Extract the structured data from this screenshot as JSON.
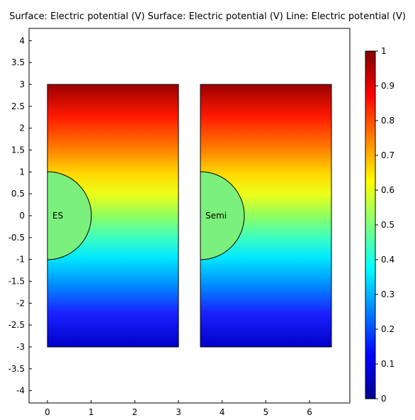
{
  "title": "Surface: Electric potential (V)  Surface: Electric potential (V)  Line: Electric potential (V)",
  "plot": {
    "x_ticks": [
      "0",
      "1",
      "2",
      "3",
      "4",
      "5",
      "6"
    ],
    "y_ticks": [
      "4",
      "3.5",
      "3",
      "2.5",
      "2",
      "1.5",
      "1",
      "0.5",
      "0",
      "-0.5",
      "-1",
      "-1.5",
      "-2",
      "-2.5",
      "-3",
      "-3.5",
      "-4"
    ],
    "x_range": [
      -0.42,
      6.95
    ],
    "y_range": [
      -4.3,
      4.3
    ],
    "domains": [
      {
        "label": "ES",
        "x_range": [
          0,
          3
        ],
        "y_range": [
          -3,
          3
        ],
        "inclusion_radius": 1
      },
      {
        "label": "Semi",
        "x_range": [
          3.5,
          6.5
        ],
        "y_range": [
          -3,
          3
        ],
        "inclusion_radius": 1
      }
    ]
  },
  "colorbar": {
    "ticks": [
      "1",
      "0.9",
      "0.8",
      "0.7",
      "0.6",
      "0.5",
      "0.4",
      "0.3",
      "0.2",
      "0.1",
      "0"
    ],
    "range": [
      0,
      1
    ],
    "colormap": [
      "#00008f",
      "#0000ff",
      "#0080ff",
      "#00ffff",
      "#80ff80",
      "#ffff00",
      "#ff8000",
      "#ff0000",
      "#800000"
    ]
  }
}
